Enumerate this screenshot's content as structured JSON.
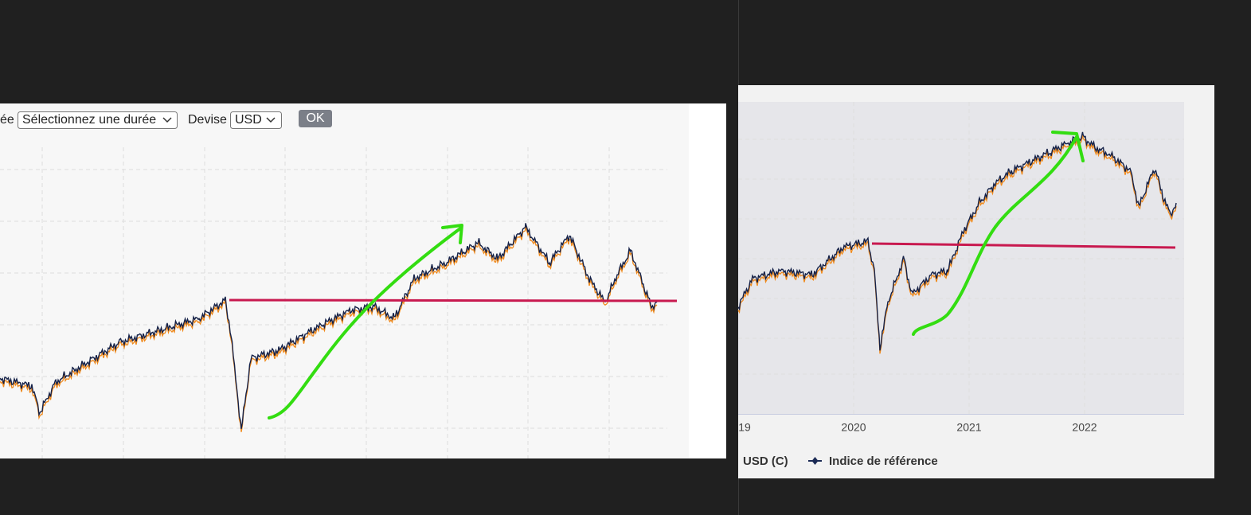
{
  "left_panel": {
    "period_label": "ée",
    "period_select": "Sélectionnez une durée",
    "currency_label": "Devise",
    "currency_select": "USD",
    "ok_button": "OK"
  },
  "right_panel": {
    "x_tick_labels": [
      "19",
      "2020",
      "2021",
      "2022"
    ],
    "legend": [
      "USD (C)",
      "Indice de référence"
    ]
  }
}
